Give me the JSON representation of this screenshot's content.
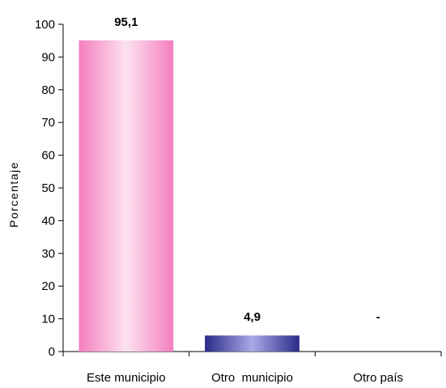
{
  "chart_data": {
    "type": "bar",
    "title": "",
    "xlabel": "",
    "ylabel": "Porcentaje",
    "categories": [
      "Este municipio",
      "Otro  municipio",
      "Otro país"
    ],
    "values": [
      95.1,
      4.9,
      null
    ],
    "data_labels": [
      "95,1",
      "4,9",
      "-"
    ],
    "ylim": [
      0,
      100
    ],
    "yticks": [
      0,
      10,
      20,
      30,
      40,
      50,
      60,
      70,
      80,
      90,
      100
    ],
    "grid": false,
    "legend": "none",
    "bar_colors": [
      "#f48cc4",
      "#3a3a99",
      "#cccccc"
    ]
  }
}
